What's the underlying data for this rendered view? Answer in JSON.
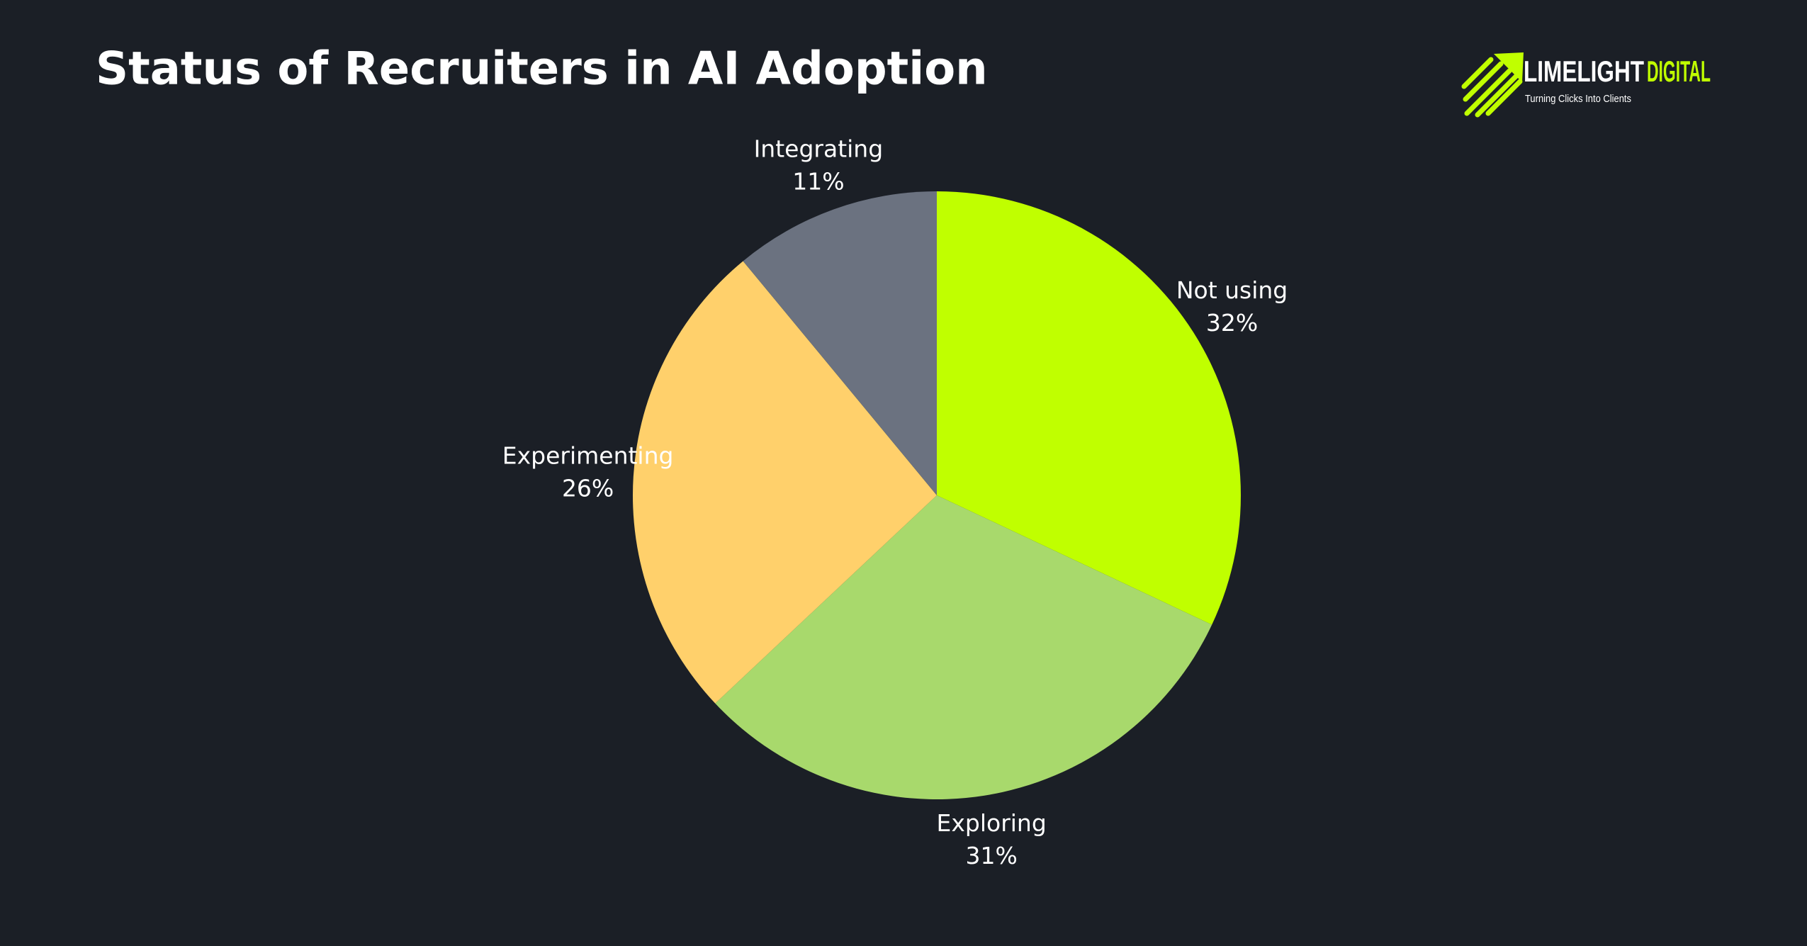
{
  "chart_data": {
    "type": "pie",
    "title": "Status of Recruiters in AI Adoption",
    "categories": [
      "Not using",
      "Exploring",
      "Experimenting",
      "Integrating"
    ],
    "values": [
      32,
      31,
      26,
      11
    ],
    "value_labels": [
      "32%",
      "31%",
      "26%",
      "11%"
    ],
    "colors": [
      "#c0ff00",
      "#a8d96c",
      "#ffd06b",
      "#6b7280"
    ]
  },
  "logo": {
    "name_part1": "LIMELIGHT",
    "name_part2": "DIGITAL",
    "tagline": "Turning Clicks Into Clients"
  }
}
